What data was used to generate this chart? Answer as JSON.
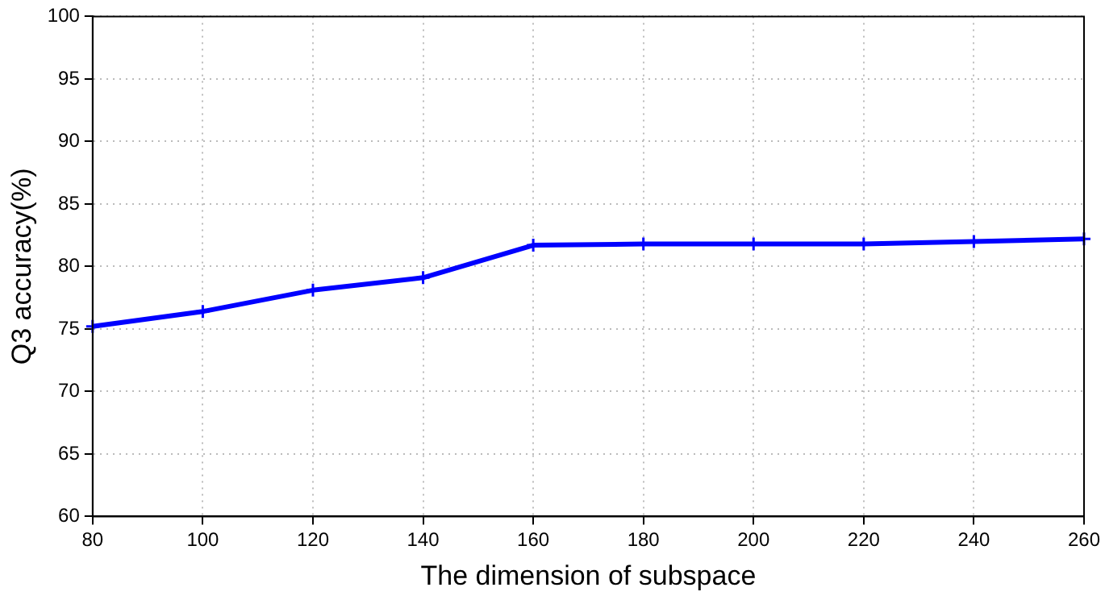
{
  "chart_data": {
    "type": "line",
    "xlabel": "The dimension of subspace",
    "ylabel": "Q3 accuracy(%)",
    "x": [
      80,
      100,
      120,
      140,
      160,
      180,
      200,
      220,
      240,
      260
    ],
    "series": [
      {
        "color": "#0000ff",
        "values": [
          75.2,
          76.4,
          78.1,
          79.1,
          81.7,
          81.8,
          81.8,
          81.8,
          82.0,
          82.2
        ]
      }
    ],
    "xlim": [
      80,
      260
    ],
    "xticks": [
      80,
      100,
      120,
      140,
      160,
      180,
      200,
      220,
      240,
      260
    ],
    "ylim": [
      60,
      100
    ],
    "yticks": [
      60,
      65,
      70,
      75,
      80,
      85,
      90,
      95,
      100
    ],
    "grid": true,
    "marker": "cross",
    "line_style": "solid"
  }
}
